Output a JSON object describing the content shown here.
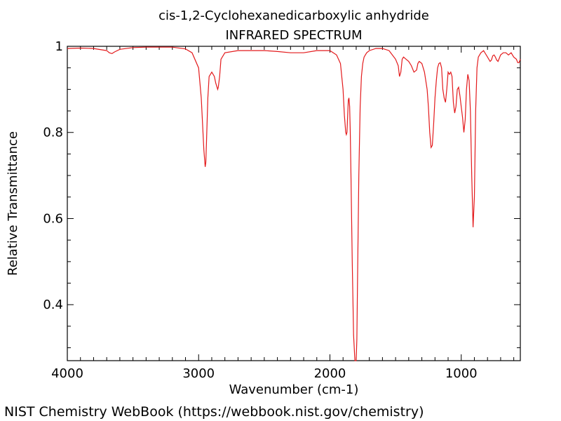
{
  "footer": "NIST Chemistry WebBook (https://webbook.nist.gov/chemistry)",
  "chart_data": {
    "type": "line",
    "title": "cis-1,2-Cyclohexanedicarboxylic anhydride",
    "subtitle": "INFRARED SPECTRUM",
    "xlabel": "Wavenumber (cm-1)",
    "ylabel": "Relative Transmittance",
    "xlim": [
      4000,
      550
    ],
    "ylim": [
      0.27,
      1.0
    ],
    "x_reversed": true,
    "xticks": [
      4000,
      3000,
      2000,
      1000
    ],
    "xtick_labels": [
      "4000",
      "3000",
      "2000",
      "1000"
    ],
    "yticks": [
      0.4,
      0.6,
      0.8,
      1.0
    ],
    "ytick_labels": [
      "0.4",
      "0.6",
      "0.8",
      "1"
    ],
    "grid": false,
    "color": "#e31a1c",
    "series": [
      {
        "x": [
          4000,
          3900,
          3800,
          3700,
          3680,
          3660,
          3640,
          3600,
          3500,
          3400,
          3300,
          3200,
          3100,
          3050,
          3000,
          2980,
          2960,
          2950,
          2945,
          2940,
          2930,
          2920,
          2900,
          2880,
          2870,
          2860,
          2855,
          2850,
          2840,
          2830,
          2800,
          2700,
          2600,
          2500,
          2400,
          2300,
          2200,
          2100,
          2000,
          1950,
          1920,
          1900,
          1890,
          1880,
          1875,
          1870,
          1865,
          1860,
          1855,
          1850,
          1845,
          1840,
          1830,
          1820,
          1810,
          1805,
          1800,
          1795,
          1790,
          1780,
          1770,
          1760,
          1750,
          1740,
          1720,
          1700,
          1650,
          1600,
          1550,
          1500,
          1480,
          1470,
          1460,
          1450,
          1440,
          1420,
          1400,
          1380,
          1360,
          1340,
          1330,
          1320,
          1300,
          1280,
          1260,
          1250,
          1240,
          1230,
          1220,
          1210,
          1200,
          1190,
          1180,
          1170,
          1160,
          1150,
          1140,
          1130,
          1120,
          1110,
          1100,
          1090,
          1080,
          1070,
          1060,
          1050,
          1040,
          1030,
          1020,
          1010,
          1000,
          990,
          980,
          970,
          960,
          950,
          940,
          930,
          920,
          910,
          900,
          890,
          880,
          870,
          850,
          830,
          800,
          780,
          770,
          760,
          750,
          740,
          730,
          720,
          700,
          680,
          660,
          640,
          620,
          600,
          580,
          570,
          560,
          550
        ],
        "y": [
          0.995,
          0.996,
          0.995,
          0.99,
          0.985,
          0.983,
          0.987,
          0.993,
          0.997,
          0.998,
          0.998,
          0.998,
          0.994,
          0.985,
          0.95,
          0.88,
          0.76,
          0.72,
          0.73,
          0.78,
          0.88,
          0.93,
          0.94,
          0.93,
          0.915,
          0.905,
          0.9,
          0.905,
          0.93,
          0.97,
          0.985,
          0.99,
          0.99,
          0.99,
          0.988,
          0.985,
          0.985,
          0.99,
          0.99,
          0.98,
          0.96,
          0.9,
          0.84,
          0.8,
          0.795,
          0.8,
          0.84,
          0.875,
          0.88,
          0.86,
          0.8,
          0.7,
          0.5,
          0.33,
          0.27,
          0.26,
          0.27,
          0.32,
          0.45,
          0.7,
          0.86,
          0.93,
          0.96,
          0.975,
          0.985,
          0.99,
          0.995,
          0.995,
          0.99,
          0.97,
          0.955,
          0.93,
          0.94,
          0.97,
          0.975,
          0.97,
          0.965,
          0.955,
          0.94,
          0.945,
          0.96,
          0.965,
          0.96,
          0.94,
          0.9,
          0.86,
          0.8,
          0.765,
          0.77,
          0.82,
          0.88,
          0.92,
          0.95,
          0.96,
          0.962,
          0.95,
          0.9,
          0.88,
          0.87,
          0.9,
          0.94,
          0.935,
          0.94,
          0.93,
          0.87,
          0.845,
          0.86,
          0.9,
          0.905,
          0.885,
          0.86,
          0.835,
          0.8,
          0.83,
          0.9,
          0.935,
          0.92,
          0.85,
          0.7,
          0.58,
          0.65,
          0.85,
          0.95,
          0.975,
          0.985,
          0.99,
          0.975,
          0.965,
          0.968,
          0.978,
          0.98,
          0.975,
          0.968,
          0.965,
          0.98,
          0.985,
          0.985,
          0.98,
          0.985,
          0.975,
          0.97,
          0.962,
          0.962,
          0.97
        ]
      }
    ]
  }
}
